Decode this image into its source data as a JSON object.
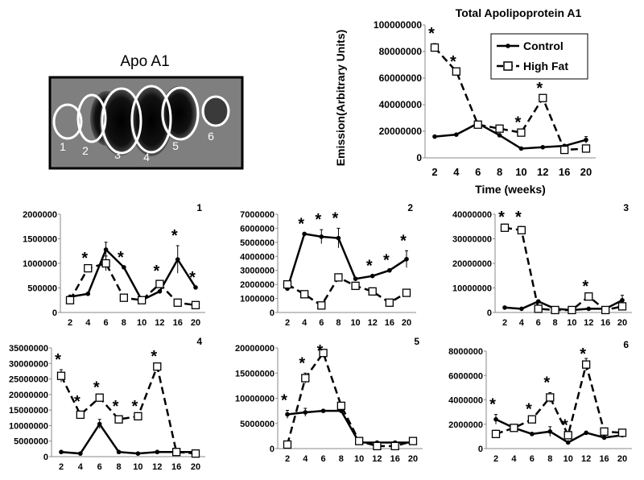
{
  "gel": {
    "title": "Apo A1",
    "bands": [
      "1",
      "2",
      "3",
      "4",
      "5",
      "6"
    ]
  },
  "legend": {
    "control": "Control",
    "high_fat": "High Fat"
  },
  "chart_data": [
    {
      "id": "total",
      "type": "line",
      "title": "Total Apolipoprotein A1",
      "xlabel": "Time (weeks)",
      "ylabel": "Emission(Arbitrary Units)",
      "categories": [
        "2",
        "4",
        "6",
        "8",
        "10",
        "12",
        "16",
        "20"
      ],
      "yticks": [
        0,
        20000000,
        40000000,
        60000000,
        80000000,
        100000000
      ],
      "ylim": [
        0,
        100000000
      ],
      "series": [
        {
          "name": "Control",
          "values": [
            16000000,
            17500000,
            26000000,
            17000000,
            7000000,
            8000000,
            9000000,
            13500000
          ],
          "errors": [
            0,
            0,
            0,
            0,
            0,
            0,
            0,
            2500000
          ]
        },
        {
          "name": "High Fat",
          "values": [
            83000000,
            65000000,
            25000000,
            22000000,
            19000000,
            45000000,
            6000000,
            7000000
          ],
          "errors": [
            3000000,
            0,
            2000000,
            0,
            0,
            0,
            0,
            0
          ]
        }
      ],
      "stars": [
        0,
        1,
        4,
        5
      ]
    },
    {
      "id": "band1",
      "type": "line",
      "label": "1",
      "categories": [
        "2",
        "4",
        "6",
        "8",
        "10",
        "12",
        "16",
        "20"
      ],
      "yticks": [
        0,
        500000,
        1000000,
        1500000,
        2000000
      ],
      "ylim": [
        0,
        2000000
      ],
      "series": [
        {
          "name": "Control",
          "values": [
            320000,
            380000,
            1280000,
            920000,
            250000,
            430000,
            1080000,
            510000
          ],
          "errors": [
            0,
            0,
            150000,
            0,
            0,
            0,
            280000,
            0
          ]
        },
        {
          "name": "High Fat",
          "values": [
            250000,
            900000,
            1000000,
            300000,
            250000,
            580000,
            200000,
            150000
          ],
          "errors": [
            60000,
            0,
            150000,
            0,
            0,
            60000,
            0,
            0
          ]
        }
      ],
      "stars": [
        1,
        3,
        5,
        6,
        7
      ]
    },
    {
      "id": "band2",
      "type": "line",
      "label": "2",
      "categories": [
        "2",
        "4",
        "6",
        "8",
        "10",
        "12",
        "16",
        "20"
      ],
      "yticks": [
        0,
        1000000,
        2000000,
        3000000,
        4000000,
        5000000,
        6000000,
        7000000
      ],
      "ylim": [
        0,
        7000000
      ],
      "series": [
        {
          "name": "Control",
          "values": [
            1700000,
            5600000,
            5400000,
            5300000,
            2400000,
            2600000,
            3000000,
            3800000
          ],
          "errors": [
            0,
            0,
            500000,
            700000,
            0,
            0,
            0,
            600000
          ]
        },
        {
          "name": "High Fat",
          "values": [
            2000000,
            1300000,
            500000,
            2500000,
            1900000,
            1500000,
            700000,
            1400000
          ],
          "errors": [
            0,
            0,
            0,
            0,
            0,
            0,
            0,
            0
          ]
        }
      ],
      "stars": [
        1,
        2,
        3,
        5,
        6,
        7
      ]
    },
    {
      "id": "band3",
      "type": "line",
      "label": "3",
      "categories": [
        "2",
        "4",
        "6",
        "8",
        "10",
        "12",
        "16",
        "20"
      ],
      "yticks": [
        0,
        10000000,
        20000000,
        30000000,
        40000000
      ],
      "ylim": [
        0,
        40000000
      ],
      "series": [
        {
          "name": "Control",
          "values": [
            2000000,
            1500000,
            4500000,
            1500000,
            1000000,
            1500000,
            1500000,
            5000000
          ],
          "errors": [
            0,
            0,
            0,
            0,
            0,
            0,
            0,
            2000000
          ]
        },
        {
          "name": "High Fat",
          "values": [
            34500000,
            33500000,
            1500000,
            1000000,
            1000000,
            6500000,
            1000000,
            2500000
          ],
          "errors": [
            1500000,
            1500000,
            0,
            0,
            0,
            0,
            0,
            0
          ]
        }
      ],
      "stars": [
        0,
        1,
        5
      ]
    },
    {
      "id": "band4",
      "type": "line",
      "label": "4",
      "categories": [
        "2",
        "4",
        "6",
        "8",
        "10",
        "12",
        "16",
        "20"
      ],
      "yticks": [
        0,
        5000000,
        10000000,
        15000000,
        20000000,
        25000000,
        30000000,
        35000000
      ],
      "ylim": [
        0,
        35000000
      ],
      "series": [
        {
          "name": "Control",
          "values": [
            1500000,
            1000000,
            10500000,
            1500000,
            1000000,
            1500000,
            1500000,
            1500000
          ],
          "errors": [
            0,
            0,
            1500000,
            0,
            0,
            0,
            0,
            0
          ]
        },
        {
          "name": "High Fat",
          "values": [
            26000000,
            13500000,
            19000000,
            12000000,
            13000000,
            29000000,
            1500000,
            1000000
          ],
          "errors": [
            2000000,
            1000000,
            0,
            1000000,
            0,
            0,
            0,
            0
          ]
        }
      ],
      "stars": [
        0,
        1,
        2,
        3,
        4,
        5
      ]
    },
    {
      "id": "band5",
      "type": "line",
      "label": "5",
      "categories": [
        "2",
        "4",
        "6",
        "8",
        "10",
        "12",
        "16",
        "20"
      ],
      "yticks": [
        0,
        5000000,
        10000000,
        15000000,
        20000000
      ],
      "ylim": [
        0,
        20000000
      ],
      "series": [
        {
          "name": "Control",
          "values": [
            6800000,
            7200000,
            7500000,
            7500000,
            1200000,
            1200000,
            1200000,
            1200000
          ],
          "errors": [
            800000,
            800000,
            0,
            0,
            0,
            0,
            0,
            0
          ]
        },
        {
          "name": "High Fat",
          "values": [
            800000,
            14000000,
            19000000,
            8500000,
            1500000,
            500000,
            500000,
            1500000
          ],
          "errors": [
            0,
            1000000,
            0,
            0,
            0,
            0,
            0,
            0
          ]
        }
      ],
      "stars": [
        0,
        1,
        2
      ]
    },
    {
      "id": "band6",
      "type": "line",
      "label": "6",
      "categories": [
        "2",
        "4",
        "6",
        "8",
        "10",
        "12",
        "16",
        "20"
      ],
      "yticks": [
        0,
        2000000,
        4000000,
        6000000,
        8000000
      ],
      "ylim": [
        0,
        8000000
      ],
      "series": [
        {
          "name": "Control",
          "values": [
            2400000,
            1700000,
            1200000,
            1400000,
            500000,
            1300000,
            900000,
            1100000
          ],
          "errors": [
            400000,
            0,
            0,
            400000,
            0,
            0,
            0,
            0
          ]
        },
        {
          "name": "High Fat",
          "values": [
            1200000,
            1700000,
            2400000,
            4200000,
            1100000,
            6900000,
            1400000,
            1300000
          ],
          "errors": [
            300000,
            0,
            0,
            400000,
            0,
            500000,
            0,
            0
          ]
        }
      ],
      "stars": [
        0,
        2,
        3,
        4,
        5
      ]
    }
  ]
}
